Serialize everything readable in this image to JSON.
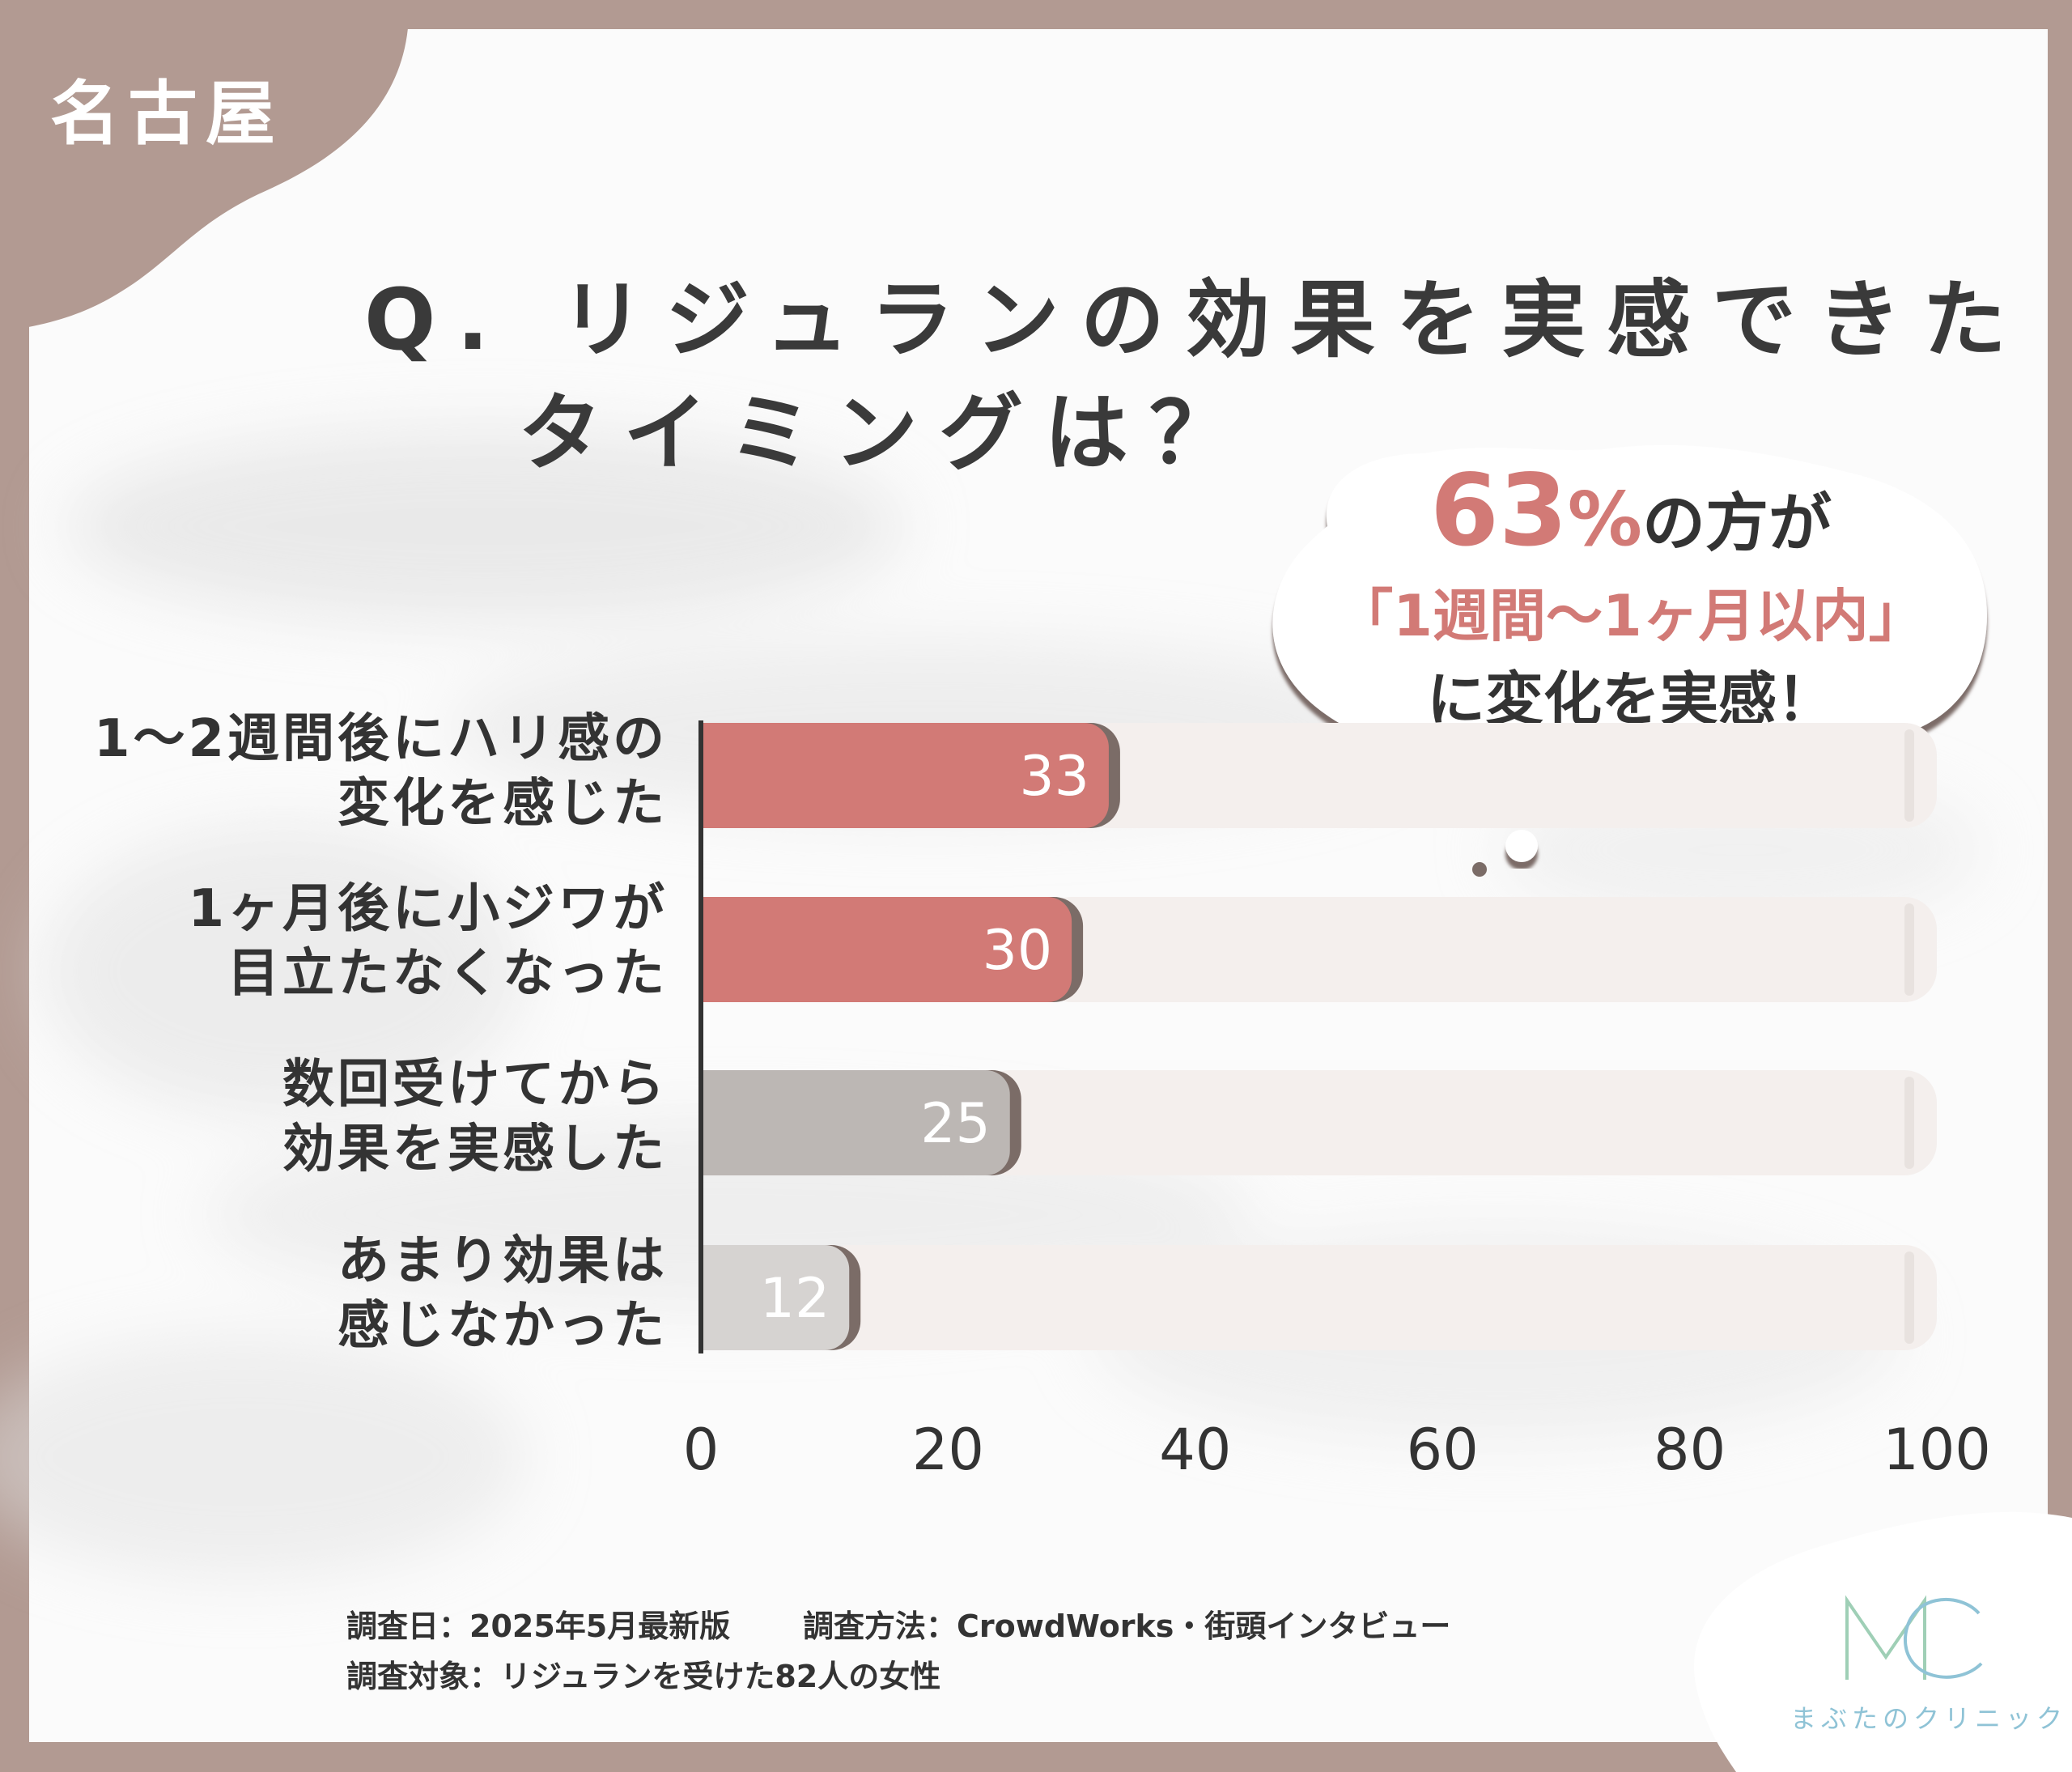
{
  "region_tag": "名古屋",
  "title": {
    "line1": "Q. リジュランの効果を実感できた",
    "line2": "タイミングは？"
  },
  "callout": {
    "percent": "63",
    "percent_sign": "%",
    "line1_rest": "の方が",
    "line2": "「1週間〜1ヶ月以内」",
    "line3": "に変化を実感！"
  },
  "chart_data": {
    "type": "bar",
    "orientation": "horizontal",
    "categories": [
      [
        "1〜2週間後にハリ感の",
        "変化を感じた"
      ],
      [
        "1ヶ月後に小ジワが",
        "目立たなくなった"
      ],
      [
        "数回受けてから",
        "効果を実感した"
      ],
      [
        "あまり効果は",
        "感じなかった"
      ]
    ],
    "values": [
      33,
      30,
      25,
      12
    ],
    "value_labels": [
      "33",
      "30",
      "25",
      "12"
    ],
    "xlim": [
      0,
      100
    ],
    "ticks": [
      0,
      20,
      40,
      60,
      80,
      100
    ],
    "tick_labels": [
      "0",
      "20",
      "40",
      "60",
      "80",
      "100"
    ],
    "grid": false,
    "bar_colors": [
      "#d27a76",
      "#d27a76",
      "#bcb7b4",
      "#d6d3d1"
    ],
    "shadow_color": "#7b6c67",
    "track_color": "#f4efed"
  },
  "footer": {
    "survey_date": "調査日：2025年5月最新版",
    "survey_method": "調査方法：CrowdWorks・街頭インタビュー",
    "survey_target": "調査対象：リジュランを受けた82人の女性"
  },
  "brand": {
    "logo_letters": "MC",
    "name": "まぶたのクリニック",
    "color": "#8fc3d6"
  },
  "colors": {
    "frame": "#b29a92",
    "accent": "#d27a76",
    "text": "#333333"
  }
}
